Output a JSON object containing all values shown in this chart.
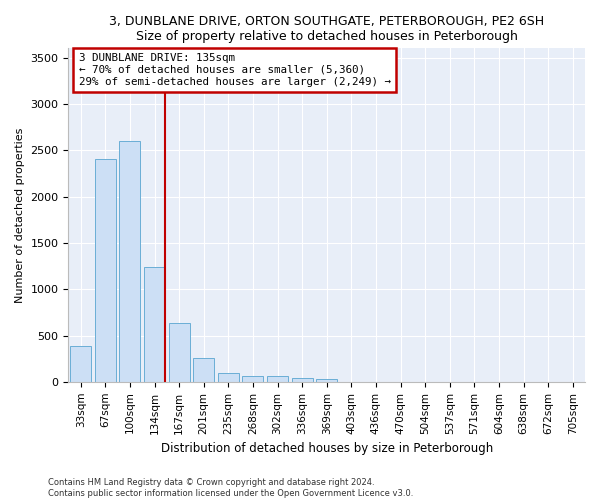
{
  "title1": "3, DUNBLANE DRIVE, ORTON SOUTHGATE, PETERBOROUGH, PE2 6SH",
  "title2": "Size of property relative to detached houses in Peterborough",
  "xlabel": "Distribution of detached houses by size in Peterborough",
  "ylabel": "Number of detached properties",
  "categories": [
    "33sqm",
    "67sqm",
    "100sqm",
    "134sqm",
    "167sqm",
    "201sqm",
    "235sqm",
    "268sqm",
    "302sqm",
    "336sqm",
    "369sqm",
    "403sqm",
    "436sqm",
    "470sqm",
    "504sqm",
    "537sqm",
    "571sqm",
    "604sqm",
    "638sqm",
    "672sqm",
    "705sqm"
  ],
  "values": [
    390,
    2400,
    2600,
    1240,
    640,
    260,
    100,
    65,
    60,
    45,
    30,
    0,
    0,
    0,
    0,
    0,
    0,
    0,
    0,
    0,
    0
  ],
  "bar_color": "#ccdff5",
  "bar_edge_color": "#6aaed6",
  "vline_color": "#c00000",
  "vline_x_index": 3,
  "annotation_line1": "3 DUNBLANE DRIVE: 135sqm",
  "annotation_line2": "← 70% of detached houses are smaller (5,360)",
  "annotation_line3": "29% of semi-detached houses are larger (2,249) →",
  "annotation_box_facecolor": "#ffffff",
  "annotation_box_edgecolor": "#c00000",
  "ylim": [
    0,
    3600
  ],
  "yticks": [
    0,
    500,
    1000,
    1500,
    2000,
    2500,
    3000,
    3500
  ],
  "footnote1": "Contains HM Land Registry data © Crown copyright and database right 2024.",
  "footnote2": "Contains public sector information licensed under the Open Government Licence v3.0.",
  "bg_color": "#ffffff",
  "plot_bg_color": "#e8eef8"
}
